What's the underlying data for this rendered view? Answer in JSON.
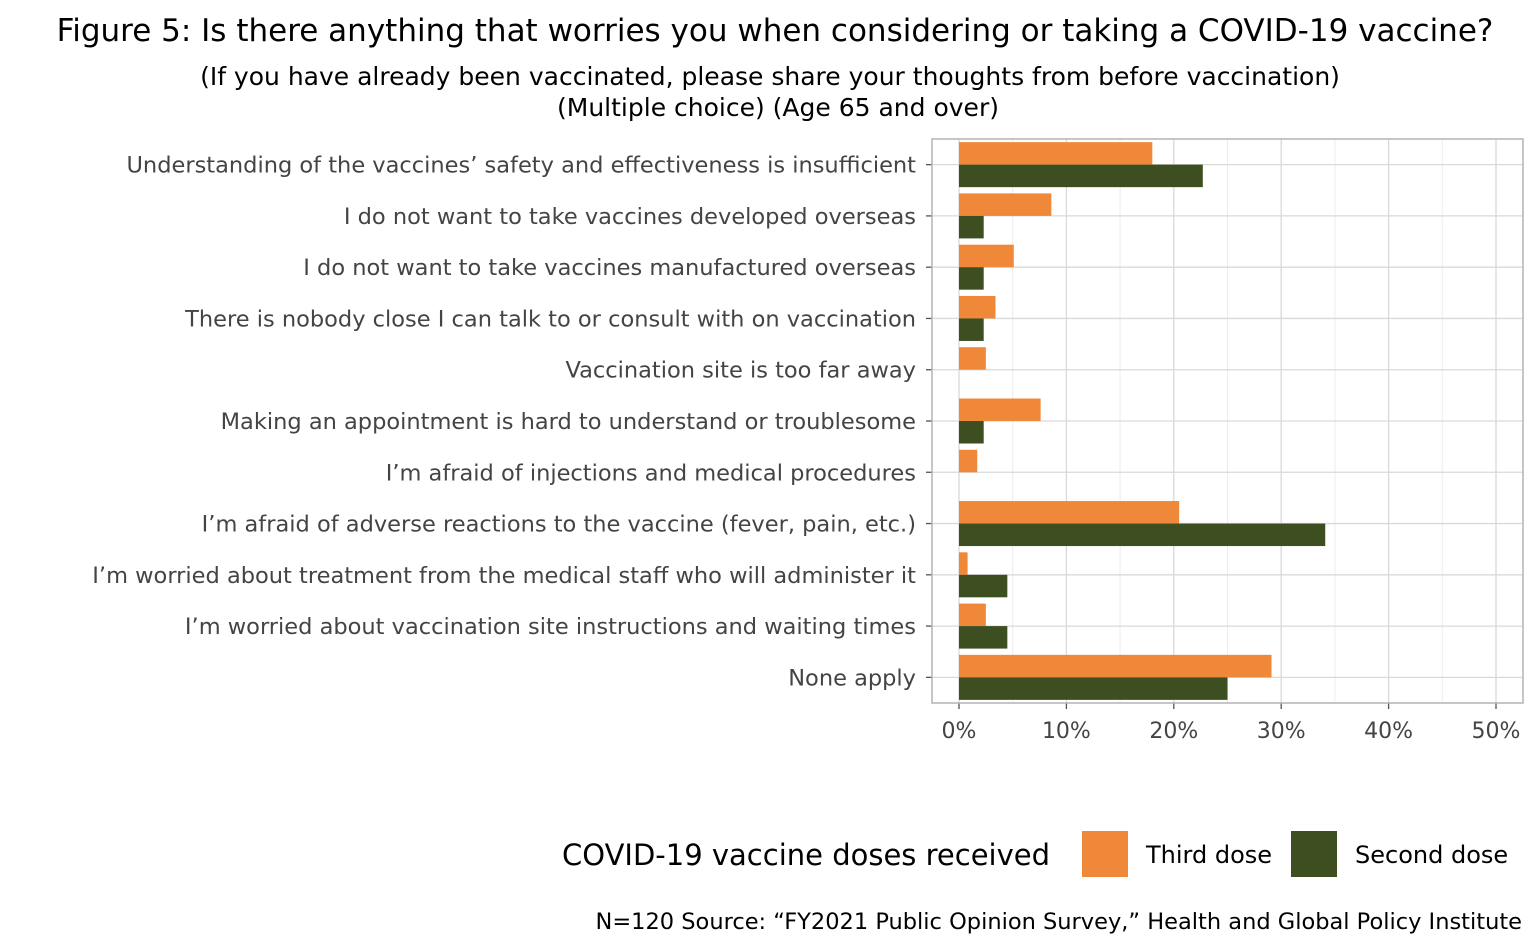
{
  "chart_data": {
    "type": "bar",
    "orientation": "horizontal",
    "title": "Figure 5: Is there anything that worries you when considering or taking a COVID-19 vaccine?",
    "subtitle_lines": [
      "(If you have already been vaccinated, please share your thoughts from before vaccination)",
      "(Multiple choice) (Age 65 and over)"
    ],
    "categories": [
      "Understanding of the vaccines’ safety and effectiveness is insufficient",
      "I do not want to take vaccines developed overseas",
      "I do not want to take vaccines manufactured overseas",
      "There is nobody close I can talk to or consult with on vaccination",
      "Vaccination site is too far away",
      "Making an appointment is hard to understand or troublesome",
      "I’m afraid of injections and medical procedures",
      "I’m afraid of adverse reactions to the vaccine (fever, pain, etc.)",
      "I’m worried about treatment from the medical staff who will administer it",
      "I’m worried about vaccination site instructions and waiting times",
      "None apply"
    ],
    "series": [
      {
        "name": "Third dose",
        "color": "#F0883A",
        "values": [
          18.0,
          8.6,
          5.1,
          3.4,
          2.5,
          7.6,
          1.7,
          20.5,
          0.8,
          2.5,
          29.1
        ]
      },
      {
        "name": "Second dose",
        "color": "#3D4F20",
        "values": [
          22.7,
          2.3,
          2.3,
          2.3,
          0,
          2.3,
          0,
          34.1,
          4.5,
          4.5,
          25.0
        ]
      }
    ],
    "xlim": [
      0,
      50
    ],
    "x_ticks": [
      0,
      10,
      20,
      30,
      40,
      50
    ],
    "x_tick_labels": [
      "0%",
      "10%",
      "20%",
      "30%",
      "40%",
      "50%"
    ],
    "xlabel": "",
    "ylabel": "",
    "grid": true,
    "legend": {
      "title": "COVID-19 vaccine doses received",
      "placement": "bottom-right",
      "entries": [
        "Third dose",
        "Second dose"
      ]
    },
    "caption": "N=120 Source: “FY2021 Public Opinion Survey,” Health and Global Policy Institute"
  }
}
